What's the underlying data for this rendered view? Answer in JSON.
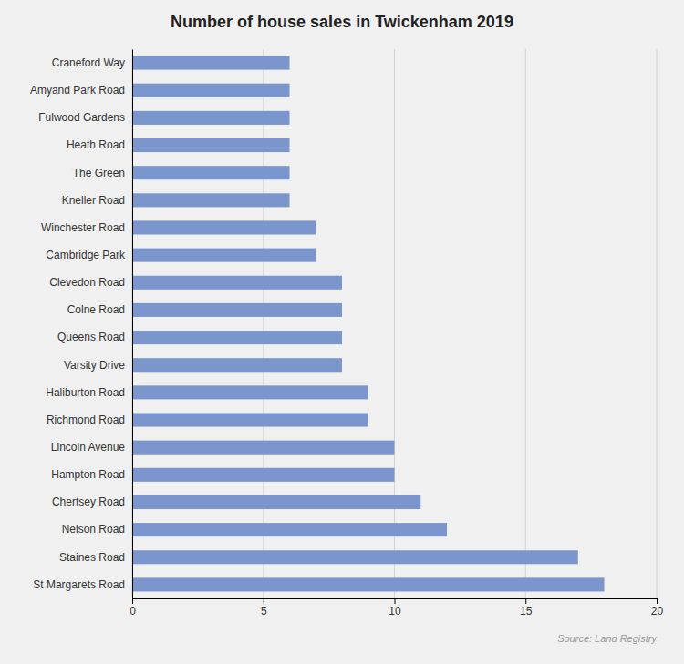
{
  "chart_data": {
    "type": "bar",
    "orientation": "horizontal",
    "title": "Number of house sales in Twickenham 2019",
    "categories": [
      "St Margarets Road",
      "Staines Road",
      "Nelson Road",
      "Chertsey Road",
      "Hampton Road",
      "Lincoln Avenue",
      "Richmond Road",
      "Haliburton Road",
      "Varsity Drive",
      "Queens Road",
      "Colne Road",
      "Clevedon Road",
      "Cambridge Park",
      "Winchester Road",
      "Kneller Road",
      "The Green",
      "Heath Road",
      "Fulwood Gardens",
      "Amyand Park Road",
      "Craneford Way"
    ],
    "values": [
      18,
      17,
      12,
      11,
      10,
      10,
      9,
      9,
      8,
      8,
      8,
      8,
      7,
      7,
      6,
      6,
      6,
      6,
      6,
      6
    ],
    "color": "#7b96cc",
    "xlim": [
      0,
      20
    ],
    "xticks": [
      0,
      5,
      10,
      15,
      20
    ],
    "grid": true,
    "annotation": "Source: Land Registry"
  }
}
